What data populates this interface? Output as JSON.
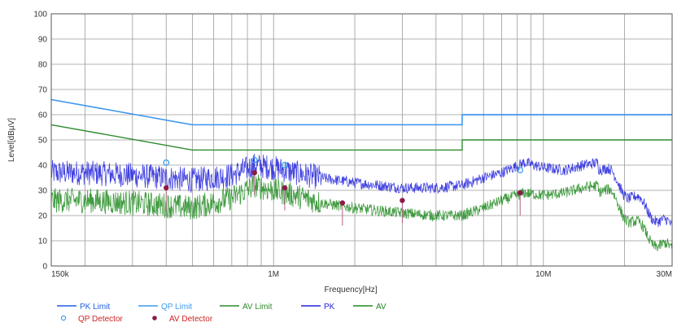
{
  "chart_data": {
    "type": "line",
    "title": "",
    "xlabel": "Frequency[Hz]",
    "ylabel": "Level[dBµV]",
    "x_scale": "log",
    "xlim": [
      150000,
      30000000
    ],
    "ylim": [
      0,
      100
    ],
    "grid": true,
    "legend_position": "bottom-left",
    "x_ticks": [
      {
        "value": 150000,
        "label": "150k"
      },
      {
        "value": 1000000,
        "label": "1M"
      },
      {
        "value": 10000000,
        "label": "10M"
      },
      {
        "value": 30000000,
        "label": "30M"
      }
    ],
    "y_ticks": [
      0,
      10,
      20,
      30,
      40,
      50,
      60,
      70,
      80,
      90,
      100
    ],
    "y_tick_labels": [
      "0",
      "10",
      "20",
      "30",
      "40",
      "50",
      "60",
      "70",
      "80",
      "90",
      "100"
    ],
    "series": [
      {
        "name": "PK Limit",
        "color": "#1f5fe0",
        "style": "line",
        "x": [
          150000,
          500000,
          500000,
          5000000,
          5000000,
          30000000
        ],
        "y": [
          66,
          56,
          56,
          56,
          60,
          60
        ]
      },
      {
        "name": "QP Limit",
        "color": "#3b9cf0",
        "style": "line",
        "x": [
          150000,
          500000,
          500000,
          5000000,
          5000000,
          30000000
        ],
        "y": [
          66,
          56,
          56,
          56,
          60,
          60
        ]
      },
      {
        "name": "AV Limit",
        "color": "#2e8b2e",
        "style": "line",
        "x": [
          150000,
          500000,
          500000,
          5000000,
          5000000,
          30000000
        ],
        "y": [
          56,
          46,
          46,
          46,
          50,
          50
        ]
      },
      {
        "name": "PK",
        "color": "#2222dd",
        "style": "noisy",
        "x": [
          150000,
          200000,
          300000,
          400000,
          500000,
          700000,
          850000,
          1000000,
          1200000,
          1500000,
          2000000,
          3000000,
          4000000,
          5000000,
          6000000,
          7000000,
          8500000,
          10000000,
          12000000,
          14000000,
          16000000,
          18000000,
          22000000,
          26000000,
          30000000
        ],
        "y": [
          37,
          37,
          36,
          35,
          34,
          36,
          40,
          39,
          37,
          35,
          33,
          31,
          31,
          32,
          35,
          37,
          41,
          39,
          38,
          40,
          41,
          35,
          26,
          20,
          14
        ]
      },
      {
        "name": "AV",
        "color": "#1e8a1e",
        "style": "noisy",
        "x": [
          150000,
          200000,
          300000,
          400000,
          500000,
          700000,
          850000,
          1000000,
          1200000,
          1500000,
          2000000,
          3000000,
          4000000,
          5000000,
          6000000,
          7000000,
          8500000,
          10000000,
          12000000,
          14000000,
          16000000,
          18000000,
          22000000,
          26000000,
          30000000
        ],
        "y": [
          26,
          26,
          25,
          24,
          23,
          27,
          32,
          30,
          28,
          25,
          23,
          21,
          20,
          20,
          23,
          26,
          29,
          28,
          29,
          31,
          32,
          27,
          16,
          10,
          5
        ]
      },
      {
        "name": "QP Detector",
        "color": "#3b9cf0",
        "style": "circle",
        "x": [
          400000,
          850000,
          1100000,
          8200000
        ],
        "y": [
          41,
          42,
          40,
          38
        ]
      },
      {
        "name": "AV Detector",
        "color": "#8b1a4a",
        "style": "dot",
        "x": [
          400000,
          850000,
          1100000,
          1800000,
          3000000,
          8200000
        ],
        "y": [
          31,
          37,
          31,
          25,
          26,
          29
        ]
      }
    ],
    "legend": [
      {
        "label": "PK Limit",
        "color": "#1f5fe0",
        "marker": "line",
        "text_color": "#1f5fe0"
      },
      {
        "label": "QP Limit",
        "color": "#3b9cf0",
        "marker": "line",
        "text_color": "#3b9cf0"
      },
      {
        "label": "AV Limit",
        "color": "#2e8b2e",
        "marker": "line",
        "text_color": "#2e8b2e"
      },
      {
        "label": "PK",
        "color": "#2222dd",
        "marker": "line",
        "text_color": "#2222dd"
      },
      {
        "label": "AV",
        "color": "#1e8a1e",
        "marker": "line",
        "text_color": "#1e8a1e"
      },
      {
        "label": "QP Detector",
        "color": "#3b9cf0",
        "marker": "circle",
        "text_color": "#cc2222"
      },
      {
        "label": "AV Detector",
        "color": "#8b1a4a",
        "marker": "dot",
        "text_color": "#cc2222"
      }
    ]
  }
}
